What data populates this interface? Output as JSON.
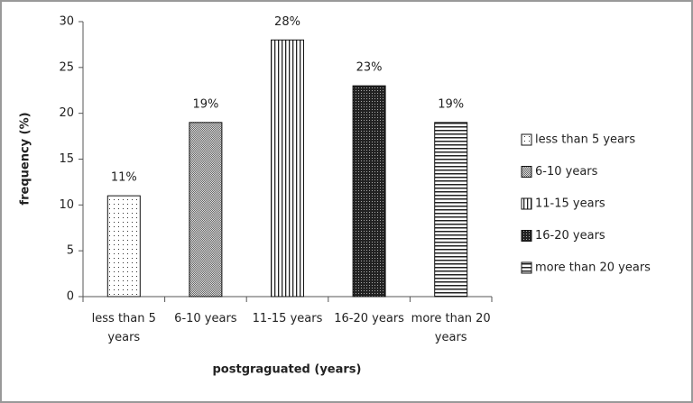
{
  "chart_data": {
    "type": "bar",
    "x_label": "postgraguated (years)",
    "y_label": "frequency (%)",
    "categories": [
      "less than 5 years",
      "6-10 years",
      "11-15 years",
      "16-20 years",
      "more than 20 years"
    ],
    "values": [
      11,
      19,
      28,
      23,
      19
    ],
    "value_labels": [
      "11%",
      "19%",
      "28%",
      "23%",
      "19%"
    ],
    "patterns": [
      "dots",
      "fine-checker",
      "vertical-stripes",
      "dark-checker",
      "horizontal-stripes"
    ],
    "ylim": [
      0,
      30
    ],
    "yticks": [
      0,
      5,
      10,
      15,
      20,
      25,
      30
    ],
    "legend": "right"
  }
}
